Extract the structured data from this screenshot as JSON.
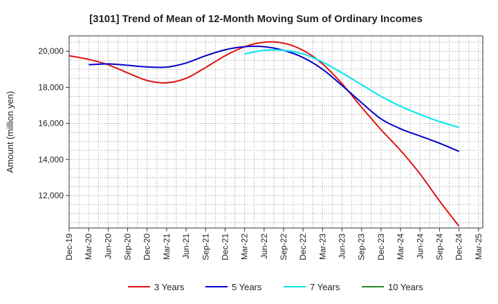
{
  "chart_data": {
    "type": "line",
    "title": "[3101]  Trend of Mean of 12-Month Moving Sum of Ordinary Incomes",
    "xlabel": "",
    "ylabel": "Amount (million yen)",
    "ylim": [
      10200,
      20850
    ],
    "yticks": [
      12000,
      14000,
      16000,
      18000,
      20000
    ],
    "ytick_labels": [
      "12,000",
      "14,000",
      "16,000",
      "18,000",
      "20,000"
    ],
    "x_labels": [
      "Dec-19",
      "Mar-20",
      "Jun-20",
      "Sep-20",
      "Dec-20",
      "Mar-21",
      "Jun-21",
      "Sep-21",
      "Dec-21",
      "Mar-22",
      "Jun-22",
      "Sep-22",
      "Dec-22",
      "Mar-23",
      "Jun-23",
      "Sep-23",
      "Dec-23",
      "Mar-24",
      "Jun-24",
      "Sep-24",
      "Dec-24",
      "Mar-25"
    ],
    "grid": true,
    "legend_position": "bottom",
    "series": [
      {
        "name": "3 Years",
        "color": "#dd1111",
        "points": [
          [
            0,
            19750
          ],
          [
            1,
            19550
          ],
          [
            2,
            19250
          ],
          [
            3,
            18800
          ],
          [
            4,
            18380
          ],
          [
            5,
            18250
          ],
          [
            6,
            18500
          ],
          [
            7,
            19100
          ],
          [
            8,
            19750
          ],
          [
            9,
            20250
          ],
          [
            10,
            20500
          ],
          [
            11,
            20450
          ],
          [
            12,
            20050
          ],
          [
            13,
            19300
          ],
          [
            14,
            18200
          ],
          [
            15,
            16900
          ],
          [
            16,
            15650
          ],
          [
            17,
            14500
          ],
          [
            18,
            13200
          ],
          [
            19,
            11700
          ],
          [
            20,
            10300
          ]
        ]
      },
      {
        "name": "5 Years",
        "color": "#0000cc",
        "points": [
          [
            1,
            19250
          ],
          [
            2,
            19300
          ],
          [
            3,
            19220
          ],
          [
            4,
            19130
          ],
          [
            5,
            19120
          ],
          [
            6,
            19350
          ],
          [
            7,
            19750
          ],
          [
            8,
            20080
          ],
          [
            9,
            20250
          ],
          [
            10,
            20250
          ],
          [
            11,
            20050
          ],
          [
            12,
            19650
          ],
          [
            13,
            19000
          ],
          [
            14,
            18100
          ],
          [
            15,
            17150
          ],
          [
            16,
            16250
          ],
          [
            17,
            15700
          ],
          [
            18,
            15300
          ],
          [
            19,
            14900
          ],
          [
            20,
            14450
          ]
        ]
      },
      {
        "name": "7 Years",
        "color": "#00e5ee",
        "points": [
          [
            9,
            19850
          ],
          [
            10,
            20050
          ],
          [
            11,
            20050
          ],
          [
            12,
            19850
          ],
          [
            13,
            19400
          ],
          [
            14,
            18800
          ],
          [
            15,
            18150
          ],
          [
            16,
            17500
          ],
          [
            17,
            16950
          ],
          [
            18,
            16500
          ],
          [
            19,
            16100
          ],
          [
            20,
            15780
          ]
        ]
      },
      {
        "name": "10 Years",
        "color": "#228b22",
        "points": []
      }
    ]
  }
}
